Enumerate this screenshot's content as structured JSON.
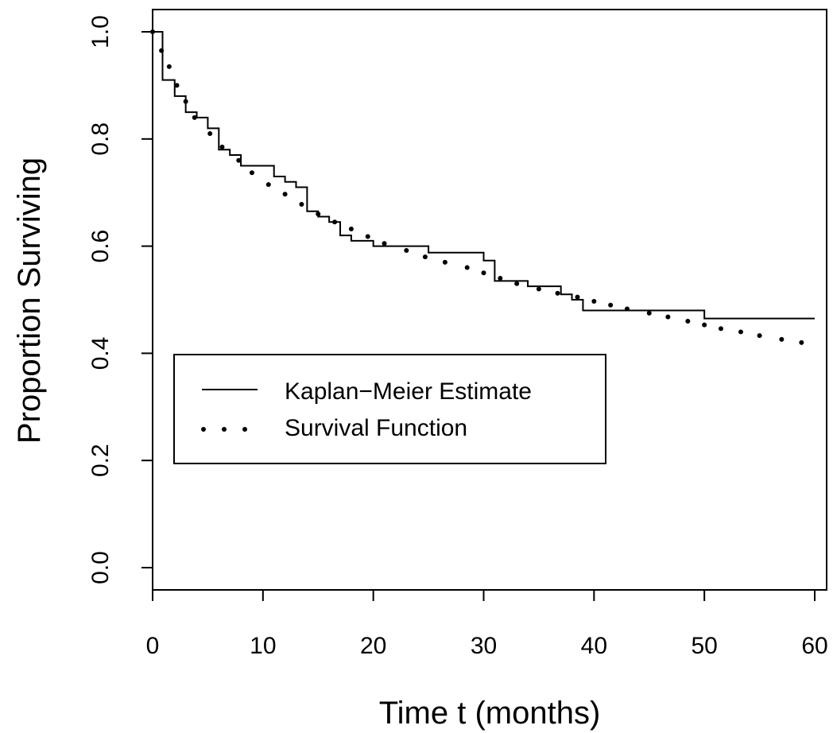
{
  "chart_data": {
    "type": "line",
    "title": "",
    "xlabel": "Time t (months)",
    "ylabel": "Proportion Surviving",
    "xlim": [
      0,
      60
    ],
    "ylim": [
      0,
      1
    ],
    "x_ticks": [
      0,
      10,
      20,
      30,
      40,
      50,
      60
    ],
    "y_ticks": [
      0.0,
      0.2,
      0.4,
      0.6,
      0.8,
      1.0
    ],
    "x_tick_labels": [
      "0",
      "10",
      "20",
      "30",
      "40",
      "50",
      "60"
    ],
    "y_tick_labels": [
      "0.0",
      "0.2",
      "0.4",
      "0.6",
      "0.8",
      "1.0"
    ],
    "grid": false,
    "legend_position": "middle-left",
    "series": [
      {
        "name": "Kaplan−Meier Estimate",
        "style": "step",
        "color": "#000000",
        "x": [
          0,
          0.9,
          2,
          3,
          4,
          5,
          6,
          7,
          8,
          11,
          12,
          13,
          14,
          15,
          16,
          17,
          18,
          20,
          25,
          30,
          31,
          34,
          37,
          38,
          39,
          50,
          60
        ],
        "y": [
          1.0,
          0.91,
          0.88,
          0.85,
          0.84,
          0.82,
          0.78,
          0.77,
          0.75,
          0.73,
          0.72,
          0.71,
          0.665,
          0.655,
          0.645,
          0.62,
          0.61,
          0.6,
          0.588,
          0.573,
          0.535,
          0.525,
          0.51,
          0.5,
          0.48,
          0.465,
          0.465
        ]
      },
      {
        "name": "Survival Function",
        "style": "dotted",
        "color": "#000000",
        "x": [
          0,
          0.8,
          1.5,
          2.2,
          3,
          3.8,
          5.2,
          6.3,
          7.8,
          9,
          10.5,
          12,
          13.5,
          15,
          16.5,
          18,
          19.5,
          21,
          23,
          24.7,
          26.5,
          28.5,
          30,
          31.5,
          33,
          35,
          36.7,
          38.5,
          40,
          41.5,
          43,
          45,
          46.7,
          48.5,
          50,
          51.5,
          53.3,
          55,
          57,
          58.8
        ],
        "y": [
          1.0,
          0.965,
          0.935,
          0.9,
          0.87,
          0.84,
          0.81,
          0.785,
          0.76,
          0.737,
          0.715,
          0.697,
          0.678,
          0.66,
          0.645,
          0.632,
          0.618,
          0.605,
          0.592,
          0.58,
          0.57,
          0.56,
          0.55,
          0.54,
          0.53,
          0.52,
          0.512,
          0.505,
          0.497,
          0.49,
          0.483,
          0.475,
          0.468,
          0.46,
          0.453,
          0.446,
          0.44,
          0.433,
          0.426,
          0.42
        ]
      }
    ]
  }
}
